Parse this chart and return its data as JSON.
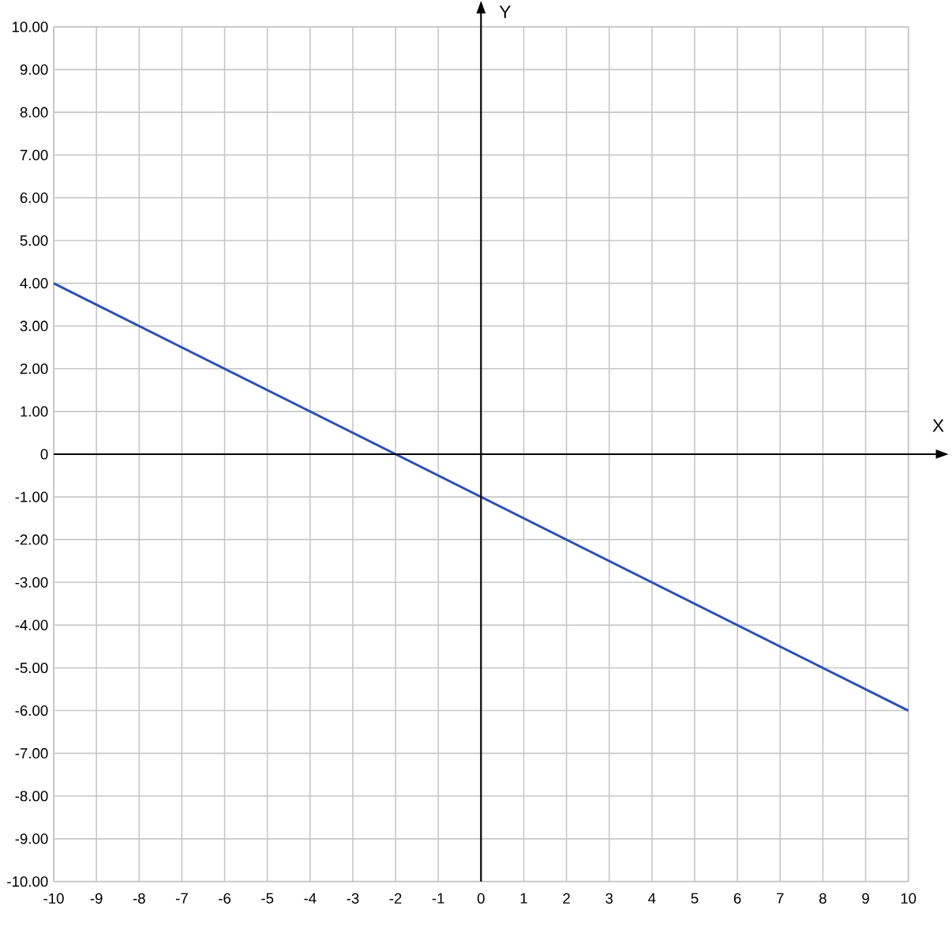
{
  "chart_data": {
    "type": "line",
    "xlabel": "X",
    "ylabel": "Y",
    "x": [
      -10,
      10
    ],
    "series": [
      {
        "color": "#2b4fb5",
        "values": [
          4,
          -6
        ]
      }
    ],
    "xlim": [
      -10,
      10
    ],
    "ylim": [
      -10,
      10
    ],
    "xticks": [
      -10,
      -9,
      -8,
      -7,
      -6,
      -5,
      -4,
      -3,
      -2,
      -1,
      0,
      1,
      2,
      3,
      4,
      5,
      6,
      7,
      8,
      9,
      10
    ],
    "yticks": [
      {
        "value": -10,
        "label": "-10.00"
      },
      {
        "value": -9,
        "label": "-9.00"
      },
      {
        "value": -8,
        "label": "-8.00"
      },
      {
        "value": -7,
        "label": "-7.00"
      },
      {
        "value": -6,
        "label": "-6.00"
      },
      {
        "value": -5,
        "label": "-5.00"
      },
      {
        "value": -4,
        "label": "-4.00"
      },
      {
        "value": -3,
        "label": "-3.00"
      },
      {
        "value": -2,
        "label": "-2.00"
      },
      {
        "value": -1,
        "label": "-1.00"
      },
      {
        "value": 0,
        "label": "0"
      },
      {
        "value": 1,
        "label": "1.00"
      },
      {
        "value": 2,
        "label": "2.00"
      },
      {
        "value": 3,
        "label": "3.00"
      },
      {
        "value": 4,
        "label": "4.00"
      },
      {
        "value": 5,
        "label": "5.00"
      },
      {
        "value": 6,
        "label": "6.00"
      },
      {
        "value": 7,
        "label": "7.00"
      },
      {
        "value": 8,
        "label": "8.00"
      },
      {
        "value": 9,
        "label": "9.00"
      },
      {
        "value": 10,
        "label": "10.00"
      }
    ],
    "grid": true,
    "marker": "none",
    "line_style": "solid"
  }
}
